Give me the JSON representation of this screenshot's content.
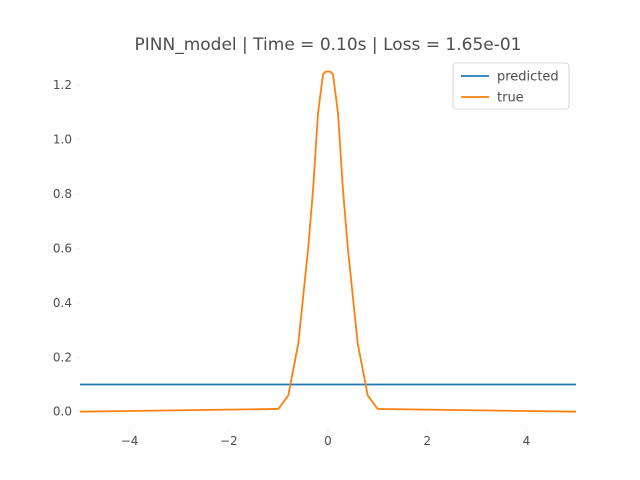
{
  "chart_data": {
    "type": "line",
    "title": "PINN_model | Time = 0.10s | Loss = 1.65e-01",
    "xlabel": "",
    "ylabel": "",
    "xlim": [
      -5,
      5
    ],
    "ylim": [
      -0.06,
      1.3
    ],
    "x_ticks": [
      -4,
      -2,
      0,
      2,
      4
    ],
    "x_tick_labels": [
      "−4",
      "−2",
      "0",
      "2",
      "4"
    ],
    "y_ticks": [
      0.0,
      0.2,
      0.4,
      0.6,
      0.8,
      1.0,
      1.2
    ],
    "y_tick_labels": [
      "0.0",
      "0.2",
      "0.4",
      "0.6",
      "0.8",
      "1.0",
      "1.2"
    ],
    "grid": false,
    "legend_position": "top-right",
    "series": [
      {
        "name": "predicted",
        "color": "#1f77b4",
        "x": [
          -5,
          5
        ],
        "y": [
          0.1,
          0.1
        ]
      },
      {
        "name": "true",
        "color": "#ff7f0e",
        "x": [
          -5,
          -1.0,
          -0.8,
          -0.6,
          -0.4,
          -0.3,
          -0.2,
          -0.1,
          -0.05,
          0.0,
          0.05,
          0.1,
          0.2,
          0.3,
          0.4,
          0.6,
          0.8,
          1.0,
          5
        ],
        "y": [
          0.0,
          0.01,
          0.06,
          0.25,
          0.6,
          0.82,
          1.1,
          1.24,
          1.25,
          1.25,
          1.25,
          1.24,
          1.1,
          0.82,
          0.6,
          0.25,
          0.06,
          0.01,
          0.0
        ]
      }
    ]
  }
}
